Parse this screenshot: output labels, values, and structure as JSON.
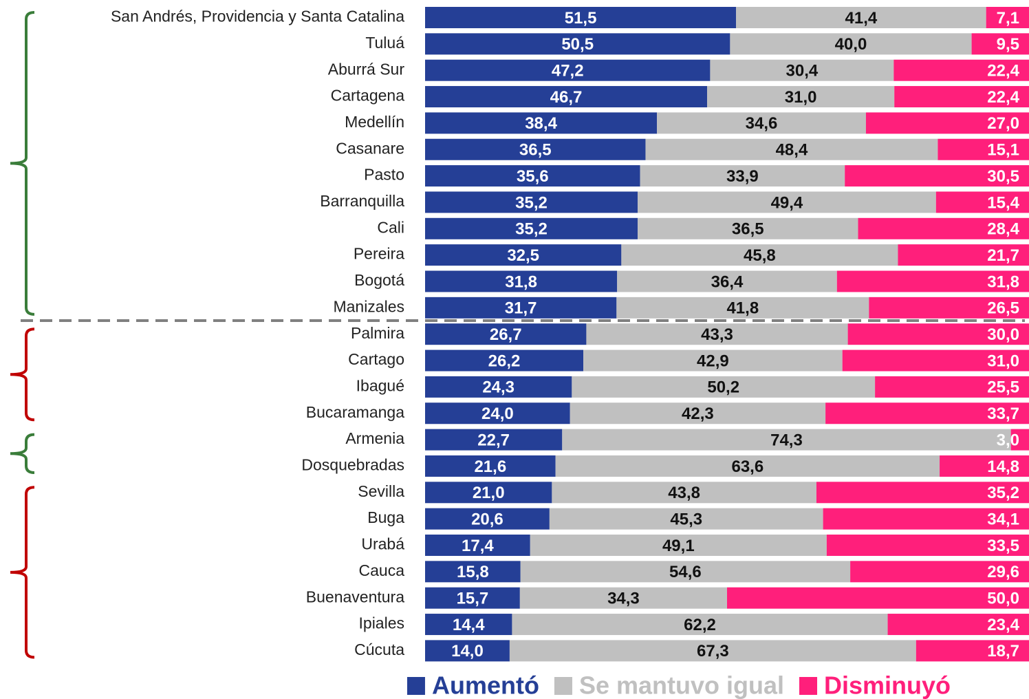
{
  "chart_data": {
    "type": "stacked-barh",
    "categories": [
      "San Andrés, Providencia y Santa Catalina",
      "Tuluá",
      "Aburrá Sur",
      "Cartagena",
      "Medellín",
      "Casanare",
      "Pasto",
      "Barranquilla",
      "Cali",
      "Pereira",
      "Bogotá",
      "Manizales",
      "Palmira",
      "Cartago",
      "Ibagué",
      "Bucaramanga",
      "Armenia",
      "Dosquebradas",
      "Sevilla",
      "Buga",
      "Urabá",
      "Cauca",
      "Buenaventura",
      "Ipiales",
      "Cúcuta"
    ],
    "xlim": [
      0,
      100
    ],
    "series": [
      {
        "name": "Aumentó",
        "color": "#253f96",
        "values": [
          51.5,
          50.5,
          47.2,
          46.7,
          38.4,
          36.5,
          35.6,
          35.2,
          35.2,
          32.5,
          31.8,
          31.7,
          26.7,
          26.2,
          24.3,
          24.0,
          22.7,
          21.6,
          21.0,
          20.6,
          17.4,
          15.8,
          15.7,
          14.4,
          14.0
        ],
        "value_labels": [
          "51,5",
          "50,5",
          "47,2",
          "46,7",
          "38,4",
          "36,5",
          "35,6",
          "35,2",
          "35,2",
          "32,5",
          "31,8",
          "31,7",
          "26,7",
          "26,2",
          "24,3",
          "24,0",
          "22,7",
          "21,6",
          "21,0",
          "20,6",
          "17,4",
          "15,8",
          "15,7",
          "14,4",
          "14,0"
        ]
      },
      {
        "name": "Se mantuvo igual",
        "color": "#c0c0c0",
        "values": [
          41.4,
          40.0,
          30.4,
          31.0,
          34.6,
          48.4,
          33.9,
          49.4,
          36.5,
          45.8,
          36.4,
          41.8,
          43.3,
          42.9,
          50.2,
          42.3,
          74.3,
          63.6,
          43.8,
          45.3,
          49.1,
          54.6,
          34.3,
          62.2,
          67.3
        ],
        "value_labels": [
          "41,4",
          "40,0",
          "30,4",
          "31,0",
          "34,6",
          "48,4",
          "33,9",
          "49,4",
          "36,5",
          "45,8",
          "36,4",
          "41,8",
          "43,3",
          "42,9",
          "50,2",
          "42,3",
          "74,3",
          "63,6",
          "43,8",
          "45,3",
          "49,1",
          "54,6",
          "34,3",
          "62,2",
          "67,3"
        ]
      },
      {
        "name": "Disminuyó",
        "color": "#ff1f7b",
        "values": [
          7.1,
          9.5,
          22.4,
          22.4,
          27.0,
          15.1,
          30.5,
          15.4,
          28.4,
          21.7,
          31.8,
          26.5,
          30.0,
          31.0,
          25.5,
          33.7,
          3.0,
          14.8,
          35.2,
          34.1,
          33.5,
          29.6,
          50.0,
          23.4,
          18.7
        ],
        "value_labels": [
          "7,1",
          "9,5",
          "22,4",
          "22,4",
          "27,0",
          "15,1",
          "30,5",
          "15,4",
          "28,4",
          "21,7",
          "31,8",
          "26,5",
          "30,0",
          "31,0",
          "25,5",
          "33,7",
          "3,0",
          "14,8",
          "35,2",
          "34,1",
          "33,5",
          "29,6",
          "50,0",
          "23,4",
          "18,7"
        ]
      }
    ]
  }
}
